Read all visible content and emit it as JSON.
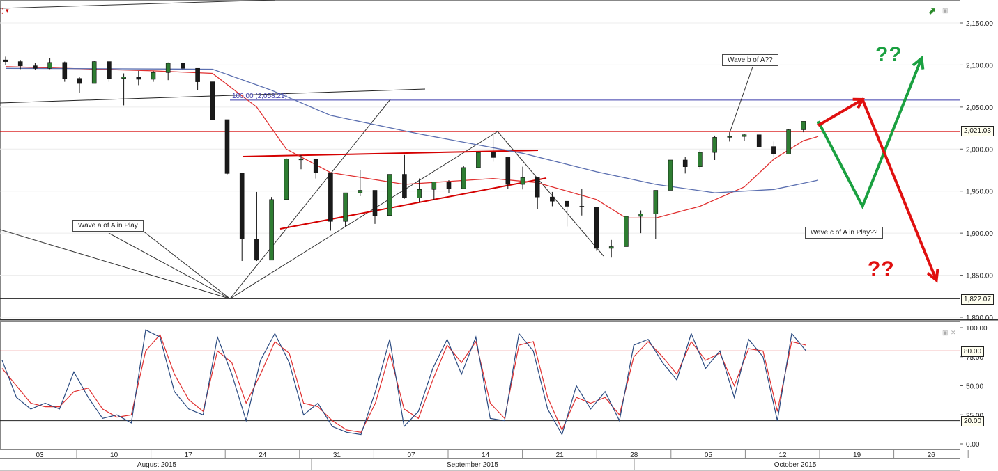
{
  "header": {
    "indicator_tag": "I) ▾"
  },
  "annotations": {
    "wave_a": "Wave a of A in Play",
    "wave_b": "Wave b of A??",
    "wave_c": "Wave c of A in Play??",
    "qq_green": "??",
    "qq_red": "??",
    "fib_label": "100.00 (2,058.21)"
  },
  "badges": {
    "price_last": "2,021.03",
    "price_low": "1,822.07",
    "stoch_upper": "80.00",
    "stoch_lower": "20.00"
  },
  "colors": {
    "bull_candle": "#2e7d32",
    "bear_candle": "#1a1a1a",
    "ma_red": "#e03030",
    "ma_blue": "#5b6fb0",
    "level_red": "#d40000",
    "fib_blue": "#3a3aaa",
    "stoch_k": "#2a4a80",
    "stoch_d": "#e03030",
    "arrow_green": "#1aa040",
    "arrow_red": "#e01010"
  },
  "chart_data": [
    {
      "type": "candlestick",
      "series": [
        {
          "name": "Price",
          "ohlc": [
            [
              "2015-07-31",
              2106,
              2110,
              2100,
              2104
            ],
            [
              "2015-08-03",
              2104,
              2106,
              2095,
              2099
            ],
            [
              "2015-08-04",
              2099,
              2102,
              2094,
              2096
            ],
            [
              "2015-08-05",
              2096,
              2108,
              2095,
              2103
            ],
            [
              "2015-08-06",
              2103,
              2104,
              2080,
              2084
            ],
            [
              "2015-08-07",
              2084,
              2086,
              2067,
              2078
            ],
            [
              "2015-08-10",
              2078,
              2105,
              2078,
              2104
            ],
            [
              "2015-08-11",
              2104,
              2104,
              2080,
              2084
            ],
            [
              "2015-08-12",
              2084,
              2090,
              2052,
              2086
            ],
            [
              "2015-08-13",
              2086,
              2093,
              2076,
              2083
            ],
            [
              "2015-08-14",
              2083,
              2093,
              2080,
              2091
            ],
            [
              "2015-08-17",
              2091,
              2103,
              2082,
              2102
            ],
            [
              "2015-08-18",
              2102,
              2103,
              2094,
              2096
            ],
            [
              "2015-08-19",
              2096,
              2096,
              2070,
              2080
            ],
            [
              "2015-08-20",
              2080,
              2080,
              2035,
              2035
            ],
            [
              "2015-08-21",
              2035,
              2035,
              1970,
              1971
            ],
            [
              "2015-08-24",
              1971,
              1971,
              1867,
              1893
            ],
            [
              "2015-08-25",
              1893,
              1949,
              1867,
              1868
            ],
            [
              "2015-08-26",
              1868,
              1943,
              1868,
              1940
            ],
            [
              "2015-08-27",
              1940,
              1989,
              1940,
              1988
            ],
            [
              "2015-08-28",
              1988,
              1993,
              1976,
              1988
            ],
            [
              "2015-08-31",
              1988,
              1988,
              1965,
              1972
            ],
            [
              "2015-09-01",
              1972,
              1972,
              1903,
              1914
            ],
            [
              "2015-09-02",
              1914,
              1948,
              1908,
              1948
            ],
            [
              "2015-09-03",
              1948,
              1975,
              1944,
              1951
            ],
            [
              "2015-09-04",
              1951,
              1951,
              1911,
              1921
            ],
            [
              "2015-09-08",
              1921,
              1970,
              1921,
              1970
            ],
            [
              "2015-09-09",
              1970,
              1993,
              1941,
              1942
            ],
            [
              "2015-09-10",
              1942,
              1965,
              1937,
              1952
            ],
            [
              "2015-09-11",
              1952,
              1961,
              1939,
              1961
            ],
            [
              "2015-09-14",
              1961,
              1963,
              1948,
              1953
            ],
            [
              "2015-09-15",
              1953,
              1980,
              1953,
              1978
            ],
            [
              "2015-09-16",
              1978,
              1997,
              1978,
              1996
            ],
            [
              "2015-09-17",
              1996,
              2020,
              1985,
              1990
            ],
            [
              "2015-09-18",
              1990,
              1990,
              1953,
              1958
            ],
            [
              "2015-09-21",
              1958,
              1979,
              1952,
              1966
            ],
            [
              "2015-09-22",
              1966,
              1966,
              1929,
              1943
            ],
            [
              "2015-09-23",
              1943,
              1949,
              1932,
              1938
            ],
            [
              "2015-09-24",
              1938,
              1938,
              1908,
              1932
            ],
            [
              "2015-09-25",
              1932,
              1953,
              1921,
              1931
            ],
            [
              "2015-09-28",
              1931,
              1931,
              1879,
              1882
            ],
            [
              "2015-09-29",
              1882,
              1892,
              1871,
              1884
            ],
            [
              "2015-09-30",
              1884,
              1920,
              1884,
              1920
            ],
            [
              "2015-10-01",
              1920,
              1927,
              1900,
              1923
            ],
            [
              "2015-10-02",
              1923,
              1951,
              1893,
              1951
            ],
            [
              "2015-10-05",
              1951,
              1987,
              1951,
              1987
            ],
            [
              "2015-10-06",
              1987,
              1991,
              1971,
              1979
            ],
            [
              "2015-10-07",
              1979,
              1999,
              1976,
              1996
            ],
            [
              "2015-10-08",
              1996,
              2016,
              1987,
              2014
            ],
            [
              "2015-10-09",
              2014,
              2020,
              2009,
              2015
            ],
            [
              "2015-10-12",
              2015,
              2018,
              2010,
              2017
            ],
            [
              "2015-10-13",
              2017,
              2017,
              2003,
              2003
            ],
            [
              "2015-10-14",
              2003,
              2009,
              1990,
              1994
            ],
            [
              "2015-10-15",
              1994,
              2024,
              1994,
              2023
            ],
            [
              "2015-10-16",
              2023,
              2033,
              2020,
              2033
            ]
          ]
        },
        {
          "name": "Moving average (red)",
          "values": [
            [
              0,
              2098
            ],
            [
              10,
              2093
            ],
            [
              14,
              2090
            ],
            [
              17,
              2050
            ],
            [
              19,
              2000
            ],
            [
              22,
              1972
            ],
            [
              27,
              1958
            ],
            [
              33,
              1965
            ],
            [
              36,
              1960
            ],
            [
              40,
              1940
            ],
            [
              42,
              1918
            ],
            [
              44,
              1918
            ],
            [
              47,
              1932
            ],
            [
              50,
              1955
            ],
            [
              52,
              1988
            ],
            [
              54,
              2010
            ],
            [
              55,
              2015
            ]
          ]
        },
        {
          "name": "Moving average (blue)",
          "values": [
            [
              0,
              2096
            ],
            [
              14,
              2095
            ],
            [
              18,
              2070
            ],
            [
              22,
              2040
            ],
            [
              28,
              2018
            ],
            [
              35,
              1995
            ],
            [
              40,
              1973
            ],
            [
              44,
              1958
            ],
            [
              48,
              1948
            ],
            [
              52,
              1952
            ],
            [
              55,
              1963
            ]
          ]
        }
      ],
      "x_tick_labels": [
        "03",
        "10",
        "17",
        "24",
        "31",
        "07",
        "14",
        "21",
        "28",
        "05",
        "12",
        "19",
        "26"
      ],
      "x_group_labels": [
        "August 2015",
        "September 2015",
        "October 2015"
      ],
      "y_tick_labels": [
        "2,150.00",
        "2,100.00",
        "2,050.00",
        "2,000.00",
        "1,950.00",
        "1,900.00",
        "1,850.00",
        "1,800.00"
      ],
      "ylim": [
        1800,
        2150
      ],
      "horizontal_levels": [
        {
          "value": 2058.21,
          "label": "100.00 (2,058.21)"
        },
        {
          "value": 2021.03
        },
        {
          "value": 1822.07
        }
      ],
      "forecast_paths": [
        {
          "color": "green",
          "points": [
            [
              55,
              2033
            ],
            [
              58,
              1932
            ],
            [
              62,
              2108
            ]
          ]
        },
        {
          "color": "red",
          "points": [
            [
              55,
              2028
            ],
            [
              58,
              2059
            ],
            [
              63,
              1844
            ]
          ]
        }
      ]
    },
    {
      "type": "line",
      "y_tick_labels": [
        "100.00",
        "75.00",
        "50.00",
        "25.00",
        "0.00"
      ],
      "ylim": [
        0,
        100
      ],
      "levels": [
        80,
        20
      ],
      "series": [
        {
          "name": "%K",
          "values": [
            [
              0,
              72
            ],
            [
              1,
              40
            ],
            [
              2,
              30
            ],
            [
              3,
              35
            ],
            [
              4,
              30
            ],
            [
              5,
              62
            ],
            [
              6,
              40
            ],
            [
              7,
              22
            ],
            [
              8,
              25
            ],
            [
              9,
              18
            ],
            [
              10,
              98
            ],
            [
              11,
              92
            ],
            [
              12,
              45
            ],
            [
              13,
              30
            ],
            [
              14,
              25
            ],
            [
              15,
              92
            ],
            [
              16,
              60
            ],
            [
              17,
              20
            ],
            [
              18,
              72
            ],
            [
              19,
              95
            ],
            [
              20,
              70
            ],
            [
              21,
              25
            ],
            [
              22,
              35
            ],
            [
              23,
              15
            ],
            [
              24,
              10
            ],
            [
              25,
              8
            ],
            [
              26,
              45
            ],
            [
              27,
              90
            ],
            [
              28,
              15
            ],
            [
              29,
              28
            ],
            [
              30,
              65
            ],
            [
              31,
              90
            ],
            [
              32,
              60
            ],
            [
              33,
              92
            ],
            [
              34,
              22
            ],
            [
              35,
              20
            ],
            [
              36,
              95
            ],
            [
              37,
              80
            ],
            [
              38,
              30
            ],
            [
              39,
              8
            ],
            [
              40,
              50
            ],
            [
              41,
              30
            ],
            [
              42,
              45
            ],
            [
              43,
              20
            ],
            [
              44,
              85
            ],
            [
              45,
              90
            ],
            [
              46,
              70
            ],
            [
              47,
              55
            ],
            [
              48,
              95
            ],
            [
              49,
              65
            ],
            [
              50,
              80
            ],
            [
              51,
              40
            ],
            [
              52,
              90
            ],
            [
              53,
              75
            ],
            [
              54,
              20
            ],
            [
              55,
              95
            ],
            [
              56,
              80
            ]
          ]
        },
        {
          "name": "%D",
          "values": [
            [
              0,
              65
            ],
            [
              1,
              50
            ],
            [
              2,
              35
            ],
            [
              3,
              32
            ],
            [
              4,
              32
            ],
            [
              5,
              45
            ],
            [
              6,
              48
            ],
            [
              7,
              30
            ],
            [
              8,
              23
            ],
            [
              9,
              25
            ],
            [
              10,
              80
            ],
            [
              11,
              94
            ],
            [
              12,
              60
            ],
            [
              13,
              38
            ],
            [
              14,
              28
            ],
            [
              15,
              80
            ],
            [
              16,
              70
            ],
            [
              17,
              35
            ],
            [
              18,
              60
            ],
            [
              19,
              88
            ],
            [
              20,
              78
            ],
            [
              21,
              35
            ],
            [
              22,
              32
            ],
            [
              23,
              20
            ],
            [
              24,
              12
            ],
            [
              25,
              10
            ],
            [
              26,
              35
            ],
            [
              27,
              78
            ],
            [
              28,
              30
            ],
            [
              29,
              22
            ],
            [
              30,
              55
            ],
            [
              31,
              85
            ],
            [
              32,
              70
            ],
            [
              33,
              88
            ],
            [
              34,
              35
            ],
            [
              35,
              22
            ],
            [
              36,
              85
            ],
            [
              37,
              88
            ],
            [
              38,
              40
            ],
            [
              39,
              12
            ],
            [
              40,
              40
            ],
            [
              41,
              35
            ],
            [
              42,
              40
            ],
            [
              43,
              25
            ],
            [
              44,
              75
            ],
            [
              45,
              88
            ],
            [
              46,
              75
            ],
            [
              47,
              60
            ],
            [
              48,
              88
            ],
            [
              49,
              72
            ],
            [
              50,
              78
            ],
            [
              51,
              50
            ],
            [
              52,
              82
            ],
            [
              53,
              80
            ],
            [
              54,
              28
            ],
            [
              55,
              88
            ],
            [
              56,
              85
            ]
          ]
        }
      ]
    }
  ]
}
